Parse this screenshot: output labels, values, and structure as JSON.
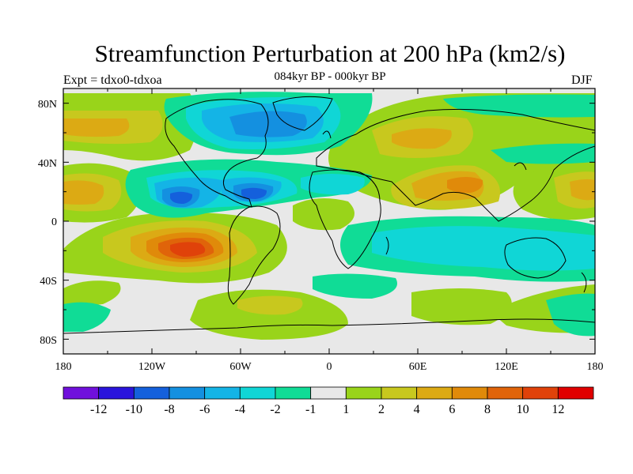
{
  "title": "Streamfunction Perturbation at 200 hPa (km2/s)",
  "subtitle": "084kyr BP - 000kyr BP",
  "experiment": "Expt = tdxo0-tdxoa",
  "season": "DJF",
  "colors": {
    "neutral": "#e8e8e8",
    "pos1": "#99d41a",
    "pos2": "#c8c81e",
    "pos3": "#dcaa14",
    "pos4": "#e08a0a",
    "pos5": "#e0640a",
    "pos6": "#e0420a",
    "pos7": "#e00000",
    "neg1": "#10dc96",
    "neg2": "#10d6d6",
    "neg3": "#14b4e6",
    "neg4": "#1490e0",
    "neg5": "#1460dc",
    "neg6": "#2a14dc",
    "neg7": "#7010dc"
  },
  "colorbar": {
    "labels": [
      "-12",
      "-10",
      "-8",
      "-6",
      "-4",
      "-2",
      "-1",
      "1",
      "2",
      "4",
      "6",
      "8",
      "10",
      "12"
    ],
    "colors": [
      "#7010dc",
      "#2a14dc",
      "#1460dc",
      "#1490e0",
      "#14b4e6",
      "#10d6d6",
      "#10dc96",
      "#e8e8e8",
      "#99d41a",
      "#c8c81e",
      "#dcaa14",
      "#e08a0a",
      "#e0640a",
      "#e0420a",
      "#e00000"
    ]
  },
  "axes": {
    "lon_ticks": [
      "180",
      "120W",
      "60W",
      "0",
      "60E",
      "120E",
      "180"
    ],
    "lat_ticks": [
      "80N",
      "40N",
      "0",
      "40S",
      "80S"
    ]
  }
}
